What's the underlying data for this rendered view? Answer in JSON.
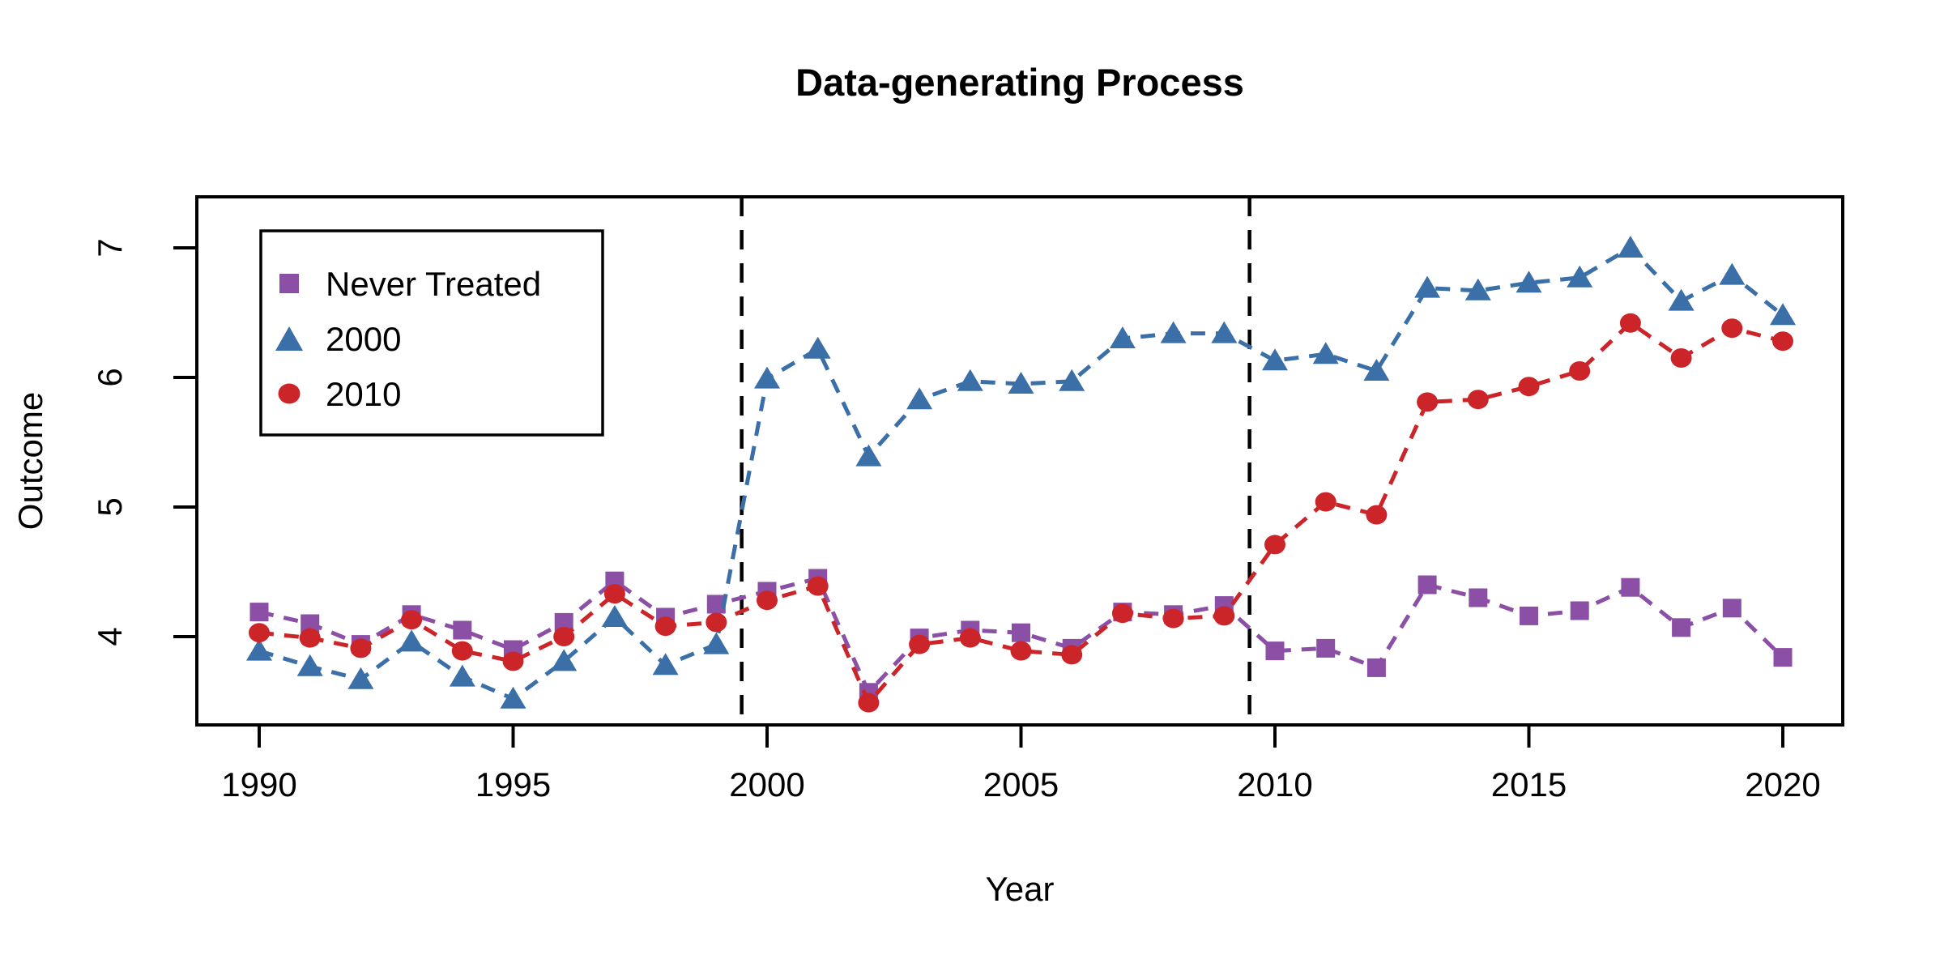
{
  "title": "Data-generating Process",
  "chart_data": {
    "type": "line",
    "title": "Data-generating Process",
    "xlabel": "Year",
    "ylabel": "Outcome",
    "x_ticks": [
      1990,
      1995,
      2000,
      2005,
      2010,
      2015,
      2020
    ],
    "y_ticks": [
      4,
      5,
      6,
      7
    ],
    "xlim": [
      1988.8,
      2021.2
    ],
    "ylim": [
      3.33,
      7.39
    ],
    "grid": false,
    "legend_position": "top-left",
    "marker_colors": {
      "purple": "#8B4FA6",
      "blue": "#3A6FA8",
      "red": "#CC2529"
    },
    "vlines": [
      {
        "x": 1999.5,
        "color": "#000000",
        "style": "dashed"
      },
      {
        "x": 2009.5,
        "color": "#000000",
        "style": "dashed"
      }
    ],
    "x": [
      1990,
      1991,
      1992,
      1993,
      1994,
      1995,
      1996,
      1997,
      1998,
      1999,
      2000,
      2001,
      2002,
      2003,
      2004,
      2005,
      2006,
      2007,
      2008,
      2009,
      2010,
      2011,
      2012,
      2013,
      2014,
      2015,
      2016,
      2017,
      2018,
      2019,
      2020
    ],
    "series": [
      {
        "name": "Never Treated",
        "marker": "square",
        "color": "#8B4FA6",
        "linestyle": "dashed",
        "values": [
          4.19,
          4.1,
          3.94,
          4.17,
          4.05,
          3.9,
          4.11,
          4.43,
          4.15,
          4.25,
          4.35,
          4.45,
          3.57,
          3.99,
          4.05,
          4.03,
          3.91,
          4.19,
          4.17,
          4.24,
          3.89,
          3.91,
          3.76,
          4.4,
          4.3,
          4.16,
          4.2,
          4.38,
          4.07,
          4.22,
          3.84
        ]
      },
      {
        "name": "2000",
        "marker": "triangle",
        "color": "#3A6FA8",
        "linestyle": "dashed",
        "values": [
          3.89,
          3.77,
          3.67,
          3.96,
          3.69,
          3.52,
          3.81,
          4.15,
          3.78,
          3.94,
          5.99,
          6.22,
          5.39,
          5.83,
          5.97,
          5.95,
          5.97,
          6.3,
          6.34,
          6.34,
          6.13,
          6.18,
          6.05,
          6.69,
          6.67,
          6.73,
          6.77,
          7.0,
          6.59,
          6.79,
          6.48
        ]
      },
      {
        "name": "2010",
        "marker": "circle",
        "color": "#CC2529",
        "linestyle": "dashed",
        "values": [
          4.03,
          3.99,
          3.91,
          4.13,
          3.89,
          3.81,
          4.0,
          4.33,
          4.08,
          4.11,
          4.28,
          4.39,
          3.49,
          3.94,
          3.99,
          3.89,
          3.86,
          4.18,
          4.14,
          4.16,
          4.71,
          5.04,
          4.94,
          5.81,
          5.83,
          5.93,
          6.05,
          6.42,
          6.15,
          6.38,
          6.28
        ]
      }
    ]
  },
  "legend": {
    "items": [
      {
        "label": "Never Treated",
        "marker": "square",
        "color": "#8B4FA6"
      },
      {
        "label": "2000",
        "marker": "triangle",
        "color": "#3A6FA8"
      },
      {
        "label": "2010",
        "marker": "circle",
        "color": "#CC2529"
      }
    ]
  }
}
